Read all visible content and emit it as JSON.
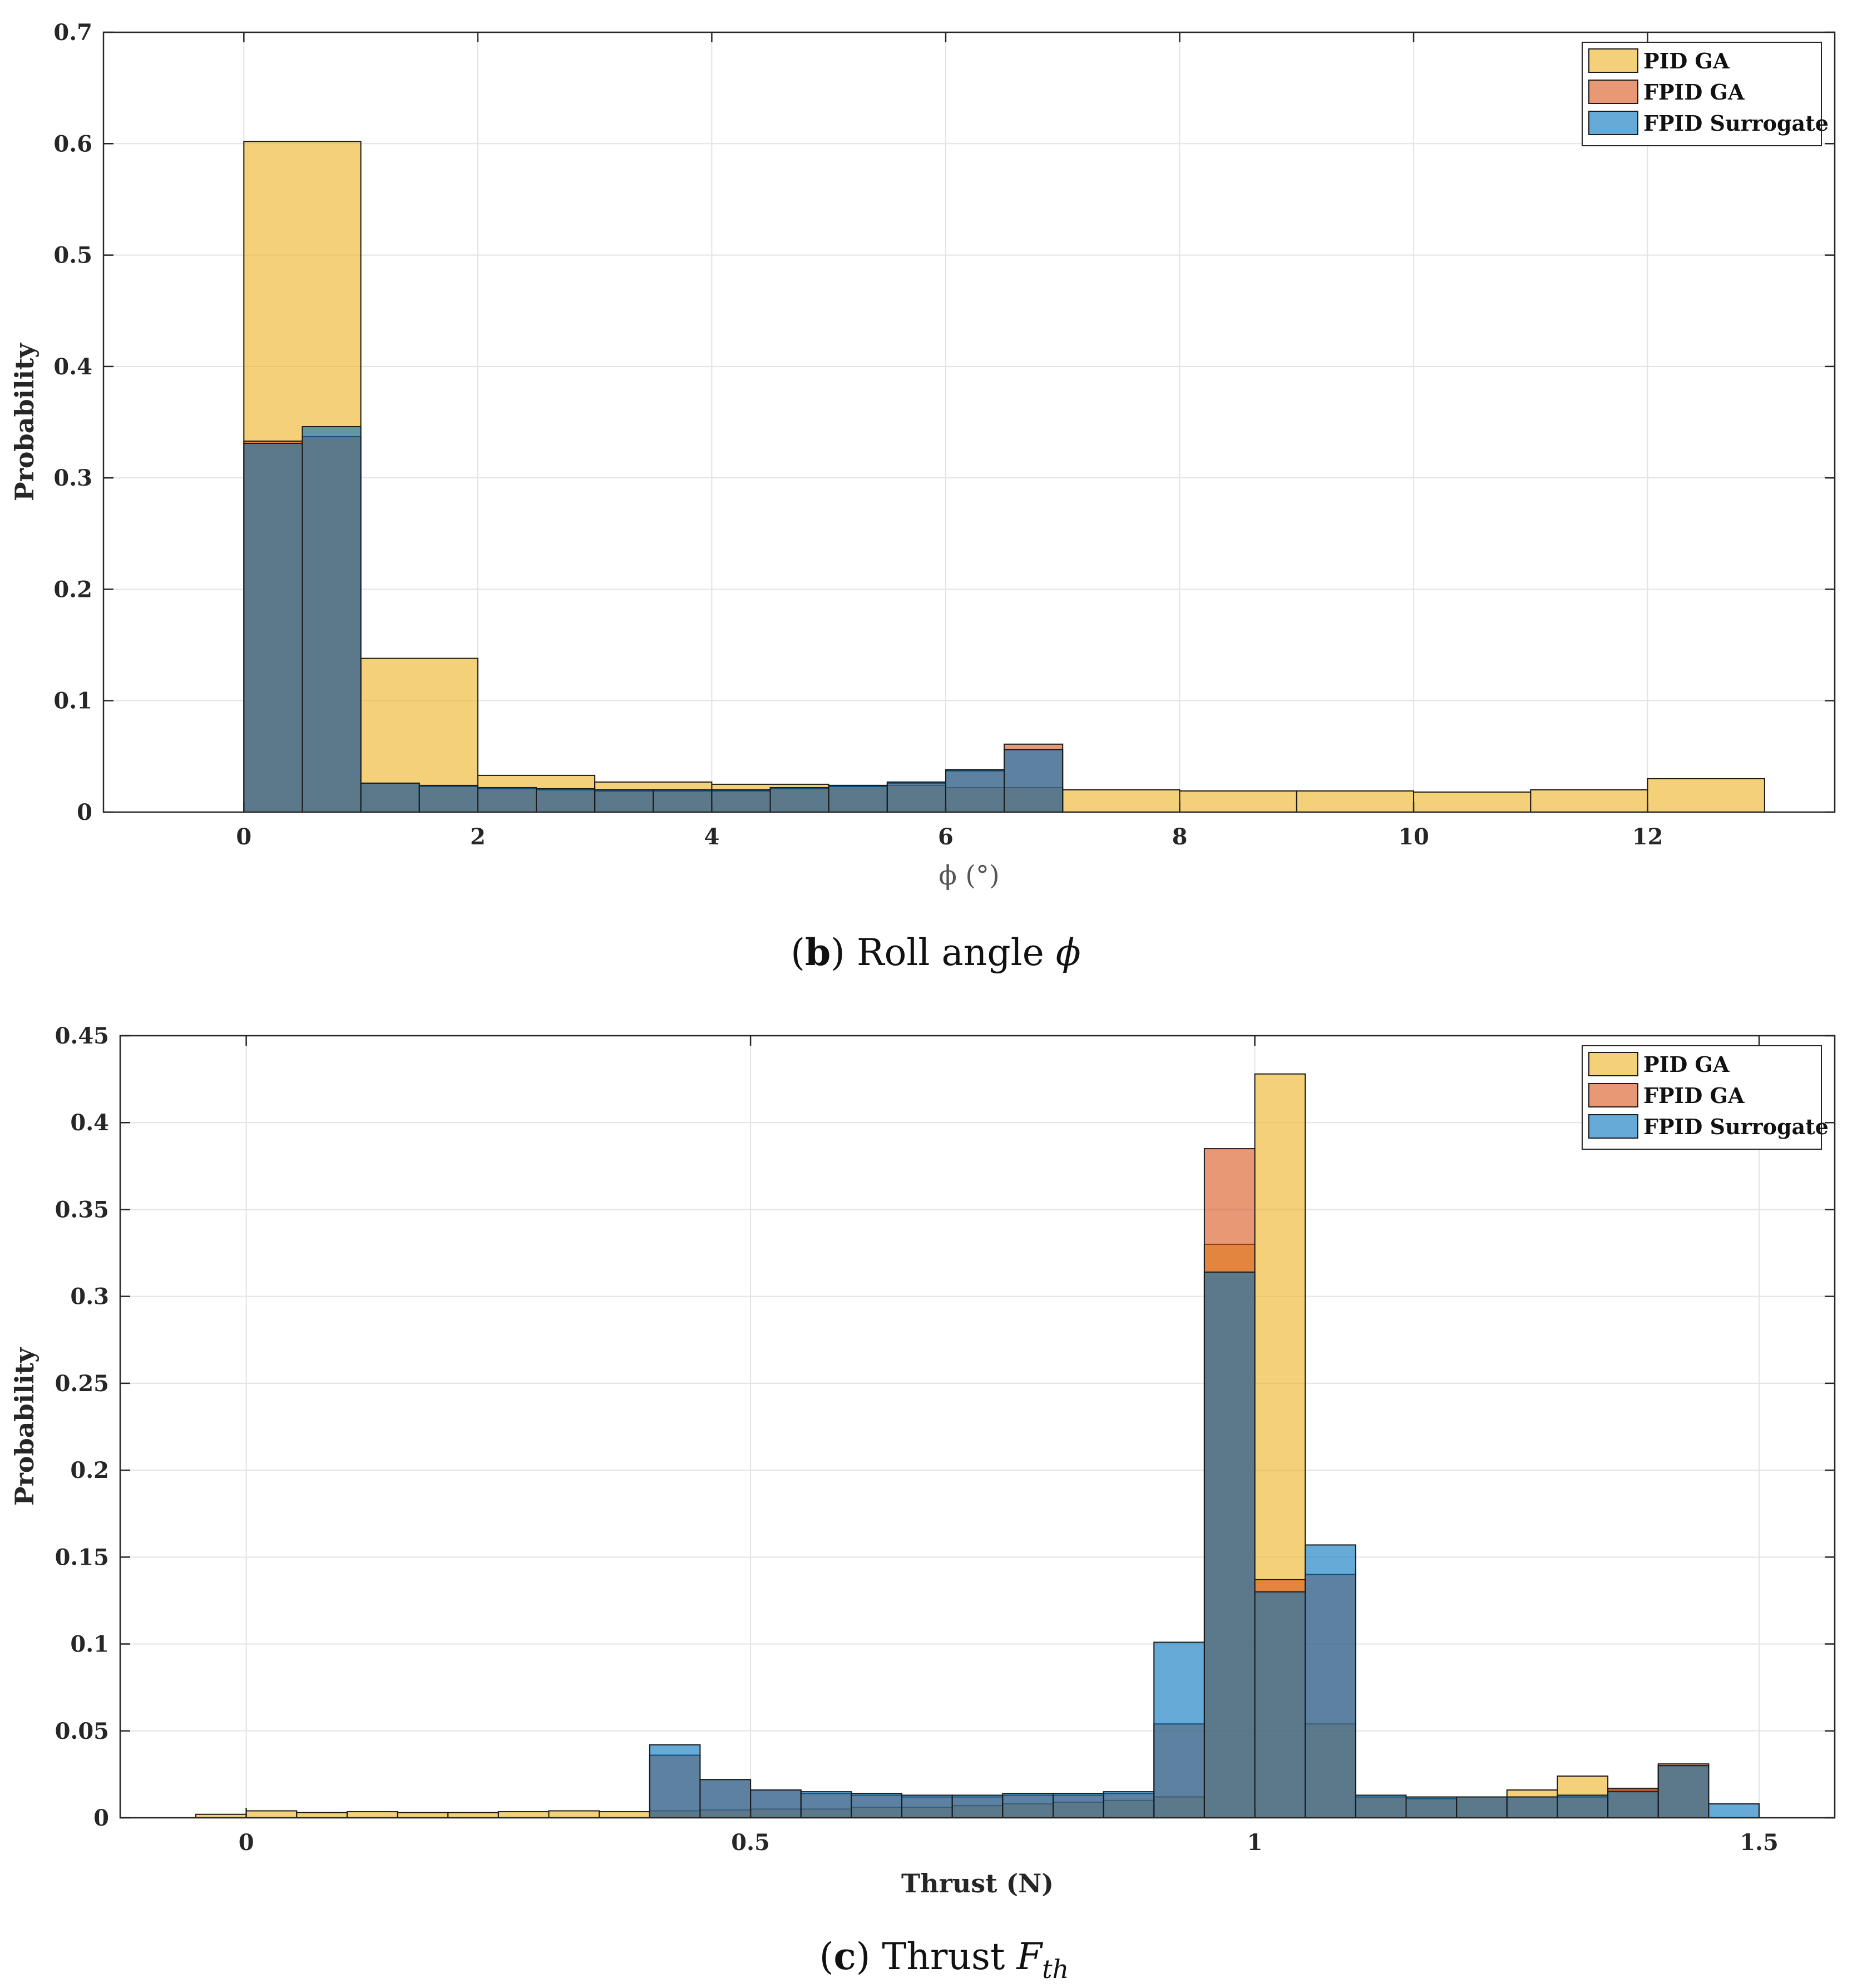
{
  "figure": {
    "colors": {
      "pid_ga": "#EDB120",
      "fpid_ga": "#D95319",
      "fpid_surrogate": "#0072BD",
      "bar_edge": "#1a1a1a"
    },
    "bar_opacity": 0.6
  },
  "chart_data": [
    {
      "id": "roll",
      "type": "bar",
      "caption": {
        "paren_open": "(",
        "letter": "b",
        "paren_close": ")",
        "text": " Roll angle ",
        "symbol": "ϕ"
      },
      "xlabel": "ϕ (°)",
      "ylabel": "Probability",
      "xlim": [
        -1.2,
        13.6
      ],
      "ylim": [
        0,
        0.7
      ],
      "xticks": [
        0,
        2,
        4,
        6,
        8,
        10,
        12
      ],
      "xtick_labels": [
        "0",
        "2",
        "4",
        "6",
        "8",
        "10",
        "12"
      ],
      "yticks": [
        0,
        0.1,
        0.2,
        0.3,
        0.4,
        0.5,
        0.6,
        0.7
      ],
      "ytick_labels": [
        "0",
        "0.1",
        "0.2",
        "0.3",
        "0.4",
        "0.5",
        "0.6",
        "0.7"
      ],
      "grid": true,
      "legend_position": "top-right",
      "series": [
        {
          "name": "PID GA",
          "color_key": "pid_ga",
          "edges": [
            0,
            1,
            2,
            3,
            4,
            5,
            6,
            7,
            8,
            9,
            10,
            11,
            12,
            13
          ],
          "values": [
            0.602,
            0.138,
            0.033,
            0.027,
            0.025,
            0.024,
            0.022,
            0.02,
            0.019,
            0.019,
            0.018,
            0.02,
            0.03
          ]
        },
        {
          "name": "FPID GA",
          "color_key": "fpid_ga",
          "edges": [
            0,
            0.5,
            1,
            1.5,
            2,
            2.5,
            3,
            3.5,
            4,
            4.5,
            5,
            5.5,
            6,
            6.5,
            7
          ],
          "values": [
            0.333,
            0.337,
            0.026,
            0.023,
            0.021,
            0.02,
            0.019,
            0.019,
            0.019,
            0.021,
            0.023,
            0.026,
            0.037,
            0.061
          ]
        },
        {
          "name": "FPID Surrogate",
          "color_key": "fpid_surrogate",
          "edges": [
            0,
            0.5,
            1,
            1.5,
            2,
            2.5,
            3,
            3.5,
            4,
            4.5,
            5,
            5.5,
            6,
            6.5,
            7
          ],
          "values": [
            0.331,
            0.346,
            0.026,
            0.024,
            0.022,
            0.021,
            0.02,
            0.02,
            0.02,
            0.022,
            0.024,
            0.027,
            0.038,
            0.056
          ]
        }
      ]
    },
    {
      "id": "thrust",
      "type": "bar",
      "caption": {
        "paren_open": "(",
        "letter": "c",
        "paren_close": ")",
        "text": " Thrust ",
        "symbol": "F",
        "subscript": "th"
      },
      "xlabel": "Thrust (N)",
      "ylabel": "Probability",
      "xlim": [
        -0.125,
        1.575
      ],
      "ylim": [
        0,
        0.45
      ],
      "xticks": [
        0,
        0.5,
        1,
        1.5
      ],
      "xtick_labels": [
        "0",
        "0.5",
        "1",
        "1.5"
      ],
      "yticks": [
        0,
        0.05,
        0.1,
        0.15,
        0.2,
        0.25,
        0.3,
        0.35,
        0.4,
        0.45
      ],
      "ytick_labels": [
        "0",
        "0.05",
        "0.1",
        "0.15",
        "0.2",
        "0.25",
        "0.3",
        "0.35",
        "0.4",
        "0.45"
      ],
      "grid": true,
      "legend_position": "top-right",
      "series": [
        {
          "name": "PID GA",
          "color_key": "pid_ga",
          "edges": [
            -0.05,
            0,
            0.05,
            0.1,
            0.15,
            0.2,
            0.25,
            0.3,
            0.35,
            0.4,
            0.45,
            0.5,
            0.55,
            0.6,
            0.65,
            0.7,
            0.75,
            0.8,
            0.85,
            0.9,
            0.95,
            1.0,
            1.05,
            1.1,
            1.15,
            1.2,
            1.25,
            1.3,
            1.35,
            1.4,
            1.45
          ],
          "values": [
            0.002,
            0.004,
            0.003,
            0.0035,
            0.003,
            0.003,
            0.0035,
            0.004,
            0.0035,
            0.004,
            0.0045,
            0.005,
            0.005,
            0.006,
            0.006,
            0.007,
            0.008,
            0.009,
            0.01,
            0.012,
            0.33,
            0.428,
            0.054,
            0.012,
            0.012,
            0.012,
            0.016,
            0.024,
            0.016,
            0.03
          ]
        },
        {
          "name": "FPID GA",
          "color_key": "fpid_ga",
          "edges": [
            0.4,
            0.45,
            0.5,
            0.55,
            0.6,
            0.65,
            0.7,
            0.75,
            0.8,
            0.85,
            0.9,
            0.95,
            1.0,
            1.05,
            1.1,
            1.15,
            1.2,
            1.25,
            1.3,
            1.35,
            1.4,
            1.45
          ],
          "values": [
            0.036,
            0.022,
            0.016,
            0.014,
            0.013,
            0.012,
            0.012,
            0.013,
            0.013,
            0.014,
            0.054,
            0.385,
            0.137,
            0.14,
            0.012,
            0.011,
            0.012,
            0.012,
            0.012,
            0.017,
            0.031
          ]
        },
        {
          "name": "FPID Surrogate",
          "color_key": "fpid_surrogate",
          "edges": [
            0.4,
            0.45,
            0.5,
            0.55,
            0.6,
            0.65,
            0.7,
            0.75,
            0.8,
            0.85,
            0.9,
            0.95,
            1.0,
            1.05,
            1.1,
            1.15,
            1.2,
            1.25,
            1.3,
            1.35,
            1.4,
            1.45,
            1.5
          ],
          "values": [
            0.042,
            0.022,
            0.016,
            0.015,
            0.014,
            0.013,
            0.013,
            0.014,
            0.014,
            0.015,
            0.101,
            0.314,
            0.13,
            0.157,
            0.013,
            0.012,
            0.012,
            0.012,
            0.013,
            0.015,
            0.03,
            0.008
          ]
        }
      ]
    }
  ]
}
